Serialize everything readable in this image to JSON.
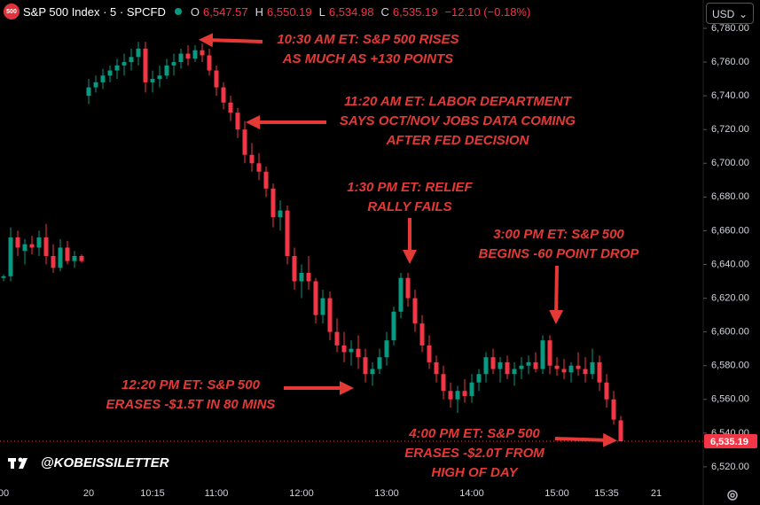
{
  "header": {
    "logo": "500",
    "symbol": "S&P 500 Index · 5 · SPCFD",
    "o_label": "O",
    "o": "6,547.57",
    "h_label": "H",
    "h": "6,550.19",
    "l_label": "L",
    "l": "6,534.98",
    "c_label": "C",
    "c": "6,535.19",
    "change": "−12.10 (−0.18%)",
    "currency": "USD"
  },
  "watermark": "@KOBEISSILETTER",
  "chart_data": {
    "type": "candlestick",
    "categories": [
      "00",
      null,
      null,
      null,
      null,
      null,
      null,
      null,
      null,
      null,
      null,
      null,
      "20",
      null,
      null,
      null,
      null,
      null,
      null,
      null,
      null,
      "10:15",
      null,
      null,
      null,
      null,
      null,
      null,
      null,
      null,
      "11:00",
      null,
      null,
      null,
      null,
      null,
      null,
      null,
      null,
      null,
      null,
      null,
      "12:00",
      null,
      null,
      null,
      null,
      null,
      null,
      null,
      null,
      null,
      null,
      null,
      "13:00",
      null,
      null,
      null,
      null,
      null,
      null,
      null,
      null,
      null,
      null,
      null,
      "14:00",
      null,
      null,
      null,
      null,
      null,
      null,
      null,
      null,
      null,
      null,
      null,
      "15:00",
      null,
      null,
      null,
      null,
      null,
      null,
      "15:35",
      null,
      null,
      null,
      null,
      null,
      null,
      "21"
    ],
    "open": [
      6632,
      6633,
      6656,
      6648,
      6652,
      6650,
      6656,
      6645,
      6638,
      6650,
      6642,
      6645,
      6740,
      6745,
      6748,
      6752,
      6755,
      6758,
      6760,
      6763,
      6768,
      6748,
      6750,
      6752,
      6758,
      6760,
      6765,
      6762,
      6767,
      6764,
      6755,
      6745,
      6736,
      6730,
      6720,
      6705,
      6700,
      6695,
      6685,
      6668,
      6672,
      6645,
      6630,
      6635,
      6630,
      6610,
      6620,
      6600,
      6592,
      6588,
      6590,
      6585,
      6575,
      6578,
      6585,
      6595,
      6612,
      6632,
      6620,
      6605,
      6592,
      6582,
      6575,
      6565,
      6560,
      6565,
      6562,
      6570,
      6575,
      6585,
      6578,
      6582,
      6575,
      6578,
      6580,
      6582,
      6578,
      6595,
      6580,
      6578,
      6576,
      6580,
      6578,
      6575,
      6582,
      6570,
      6560,
      6547.57,
      null,
      null,
      null,
      null,
      null
    ],
    "high": [
      6634,
      6662,
      6660,
      6655,
      6657,
      6660,
      6664,
      6652,
      6655,
      6654,
      6648,
      6646,
      6750,
      6752,
      6756,
      6758,
      6762,
      6765,
      6768,
      6772,
      6772,
      6755,
      6758,
      6762,
      6765,
      6768,
      6770,
      6770,
      6771,
      6768,
      6758,
      6748,
      6740,
      6733,
      6725,
      6712,
      6706,
      6698,
      6688,
      6678,
      6675,
      6650,
      6640,
      6645,
      6632,
      6625,
      6624,
      6608,
      6600,
      6595,
      6598,
      6590,
      6582,
      6590,
      6600,
      6615,
      6635,
      6635,
      6625,
      6610,
      6598,
      6586,
      6580,
      6570,
      6568,
      6572,
      6575,
      6578,
      6588,
      6590,
      6585,
      6586,
      6582,
      6585,
      6586,
      6588,
      6598,
      6598,
      6585,
      6584,
      6582,
      6588,
      6585,
      6590,
      6586,
      6575,
      6565,
      6550.19,
      null,
      null,
      null,
      null,
      null
    ],
    "low": [
      6630,
      6630,
      6645,
      6640,
      6646,
      6645,
      6640,
      6635,
      6636,
      6640,
      6638,
      6641,
      6735,
      6742,
      6744,
      6748,
      6750,
      6752,
      6755,
      6758,
      6742,
      6742,
      6745,
      6750,
      6752,
      6756,
      6758,
      6760,
      6760,
      6752,
      6740,
      6732,
      6725,
      6715,
      6700,
      6695,
      6690,
      6680,
      6662,
      6660,
      6640,
      6625,
      6620,
      6625,
      6605,
      6605,
      6595,
      6588,
      6582,
      6580,
      6578,
      6570,
      6568,
      6575,
      6580,
      6592,
      6608,
      6615,
      6600,
      6588,
      6578,
      6570,
      6560,
      6555,
      6552,
      6558,
      6558,
      6565,
      6570,
      6575,
      6570,
      6572,
      6568,
      6572,
      6575,
      6576,
      6575,
      6575,
      6574,
      6572,
      6570,
      6574,
      6570,
      6572,
      6565,
      6555,
      6545,
      6534.98,
      null,
      null,
      null,
      null,
      null
    ],
    "close": [
      6633,
      6656,
      6650,
      6652,
      6650,
      6656,
      6645,
      6638,
      6650,
      6642,
      6645,
      6642,
      6745,
      6748,
      6752,
      6755,
      6758,
      6760,
      6763,
      6768,
      6748,
      6750,
      6752,
      6758,
      6760,
      6765,
      6762,
      6767,
      6764,
      6755,
      6745,
      6736,
      6730,
      6720,
      6705,
      6700,
      6695,
      6685,
      6668,
      6672,
      6645,
      6630,
      6635,
      6630,
      6610,
      6620,
      6600,
      6592,
      6588,
      6590,
      6585,
      6575,
      6578,
      6585,
      6595,
      6612,
      6632,
      6620,
      6605,
      6592,
      6582,
      6575,
      6565,
      6560,
      6565,
      6562,
      6570,
      6575,
      6585,
      6578,
      6582,
      6575,
      6578,
      6580,
      6582,
      6578,
      6595,
      6580,
      6578,
      6576,
      6580,
      6578,
      6575,
      6582,
      6570,
      6560,
      6548,
      6535.19,
      null,
      null,
      null,
      null,
      null
    ],
    "up_color": "#089981",
    "down_color": "#f23645",
    "ylim": [
      6510.5,
      6796.8
    ],
    "yticks": [
      {
        "value": 6520,
        "label": "6,520.00"
      },
      {
        "value": 6540,
        "label": "6,540.00"
      },
      {
        "value": 6560,
        "label": "6,560.00"
      },
      {
        "value": 6580,
        "label": "6,580.00"
      },
      {
        "value": 6600,
        "label": "6,600.00"
      },
      {
        "value": 6620,
        "label": "6,620.00"
      },
      {
        "value": 6640,
        "label": "6,640.00"
      },
      {
        "value": 6660,
        "label": "6,660.00"
      },
      {
        "value": 6680,
        "label": "6,680.00"
      },
      {
        "value": 6700,
        "label": "6,700.00"
      },
      {
        "value": 6720,
        "label": "6,720.00"
      },
      {
        "value": 6740,
        "label": "6,740.00"
      },
      {
        "value": 6760,
        "label": "6,760.00"
      },
      {
        "value": 6780,
        "label": "6,780.00"
      }
    ],
    "last_price": 6535.19,
    "last_price_label": "6,535.19",
    "annotations": [
      [
        "10:30 AM ET: S&P 500 RISES",
        "AS MUCH AS +130 POINTS"
      ],
      [
        "11:20 AM ET: LABOR DEPARTMENT",
        "SAYS OCT/NOV JOBS DATA COMING",
        "AFTER FED DECISION"
      ],
      [
        "1:30 PM ET: RELIEF",
        "RALLY FAILS"
      ],
      [
        "3:00 PM ET: S&P 500",
        "BEGINS -60 POINT DROP"
      ],
      [
        "12:20 PM ET: S&P 500",
        "ERASES -$1.5T IN 80 MINS"
      ],
      [
        "4:00 PM ET: S&P 500",
        "ERASES -$2.0T FROM",
        "HIGH OF DAY"
      ]
    ]
  }
}
